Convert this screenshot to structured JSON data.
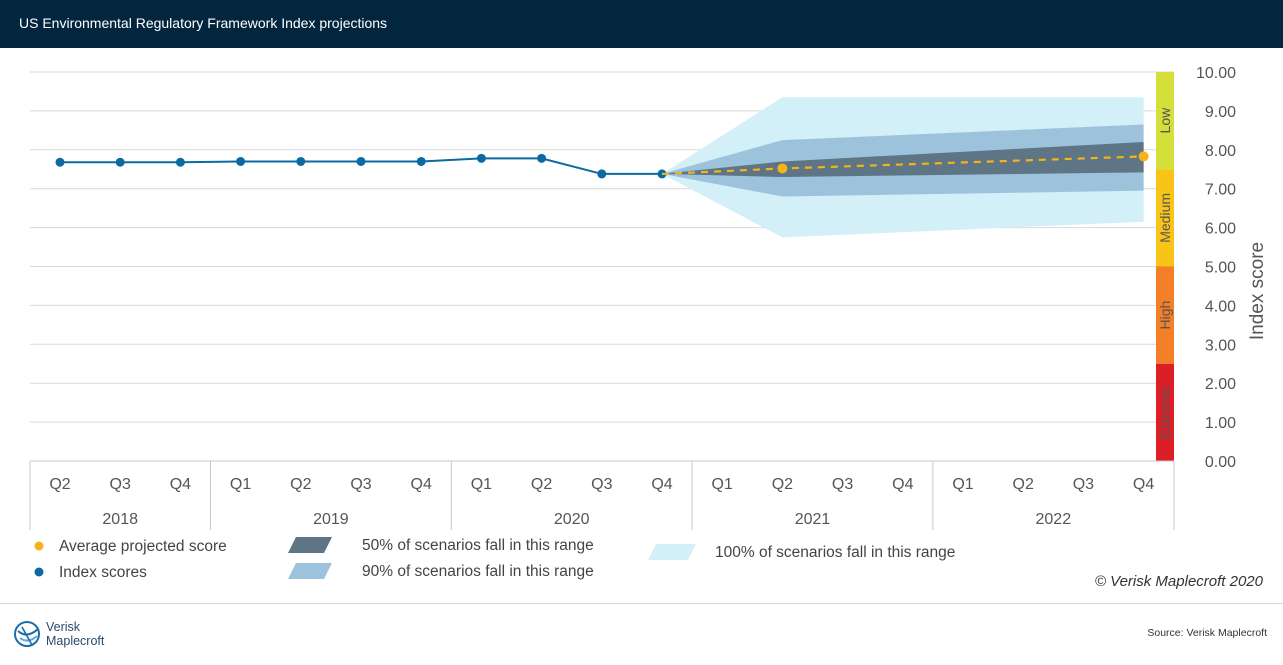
{
  "header": {
    "title": "US Environmental Regulatory Framework Index projections"
  },
  "footer": {
    "source": "Source: Verisk Maplecroft",
    "copyright": "© Verisk Maplecroft 2020",
    "logo_line1": "Verisk",
    "logo_line2": "Maplecroft"
  },
  "colors": {
    "index_line": "#0b6aa2",
    "projection": "#f5b21b",
    "band50": "#5e7585",
    "band90": "#9dc3dc",
    "band100": "#d3eff8",
    "risk_low": "#d4df3a",
    "risk_medium": "#f8c417",
    "risk_high": "#f47f26",
    "risk_extreme": "#dc1f26"
  },
  "chart_data": {
    "type": "line",
    "ylabel": "Index score",
    "ylim": [
      0,
      10
    ],
    "yticks": [
      "0.00",
      "1.00",
      "2.00",
      "3.00",
      "4.00",
      "5.00",
      "6.00",
      "7.00",
      "8.00",
      "9.00",
      "10.00"
    ],
    "quarters": [
      "Q2",
      "Q3",
      "Q4",
      "Q1",
      "Q2",
      "Q3",
      "Q4",
      "Q1",
      "Q2",
      "Q3",
      "Q4",
      "Q1",
      "Q2",
      "Q3",
      "Q4",
      "Q1",
      "Q2",
      "Q3",
      "Q4"
    ],
    "years": [
      {
        "label": "2018",
        "quarters": 3
      },
      {
        "label": "2019",
        "quarters": 4
      },
      {
        "label": "2020",
        "quarters": 4
      },
      {
        "label": "2021",
        "quarters": 4
      },
      {
        "label": "2022",
        "quarters": 4
      }
    ],
    "series": [
      {
        "name": "Index scores",
        "x": [
          0,
          1,
          2,
          3,
          4,
          5,
          6,
          7,
          8,
          9,
          10
        ],
        "values": [
          7.68,
          7.68,
          7.68,
          7.7,
          7.7,
          7.7,
          7.7,
          7.78,
          7.78,
          7.38,
          7.38
        ]
      },
      {
        "name": "Average projected score",
        "x": [
          10,
          12,
          18
        ],
        "values": [
          7.38,
          7.52,
          7.83
        ],
        "markers": [
          12,
          18
        ]
      }
    ],
    "bands": [
      {
        "name": "100% of scenarios fall in this range",
        "x": [
          10,
          12,
          18
        ],
        "low": [
          7.38,
          5.75,
          6.15
        ],
        "high": [
          7.38,
          9.35,
          9.35
        ]
      },
      {
        "name": "90% of scenarios fall in this range",
        "x": [
          10,
          12,
          18
        ],
        "low": [
          7.38,
          6.8,
          6.95
        ],
        "high": [
          7.38,
          8.25,
          8.65
        ]
      },
      {
        "name": "50% of scenarios fall in this range",
        "x": [
          10,
          12,
          18
        ],
        "low": [
          7.38,
          7.3,
          7.42
        ],
        "high": [
          7.38,
          7.7,
          8.2
        ]
      }
    ],
    "risk_bands": [
      {
        "label": "Low",
        "from": 7.5,
        "to": 10
      },
      {
        "label": "Medium",
        "from": 5,
        "to": 7.5
      },
      {
        "label": "High",
        "from": 2.5,
        "to": 5
      },
      {
        "label": "Extreme",
        "from": 0,
        "to": 2.5
      }
    ],
    "legend": [
      {
        "label": "Average projected score",
        "kind": "dot-projection"
      },
      {
        "label": "Index scores",
        "kind": "dot-index"
      },
      {
        "label": "50% of scenarios fall in this range",
        "kind": "band50"
      },
      {
        "label": "90% of scenarios fall in this range",
        "kind": "band90"
      },
      {
        "label": "100% of scenarios fall in this range",
        "kind": "band100"
      }
    ],
    "grid": true
  }
}
